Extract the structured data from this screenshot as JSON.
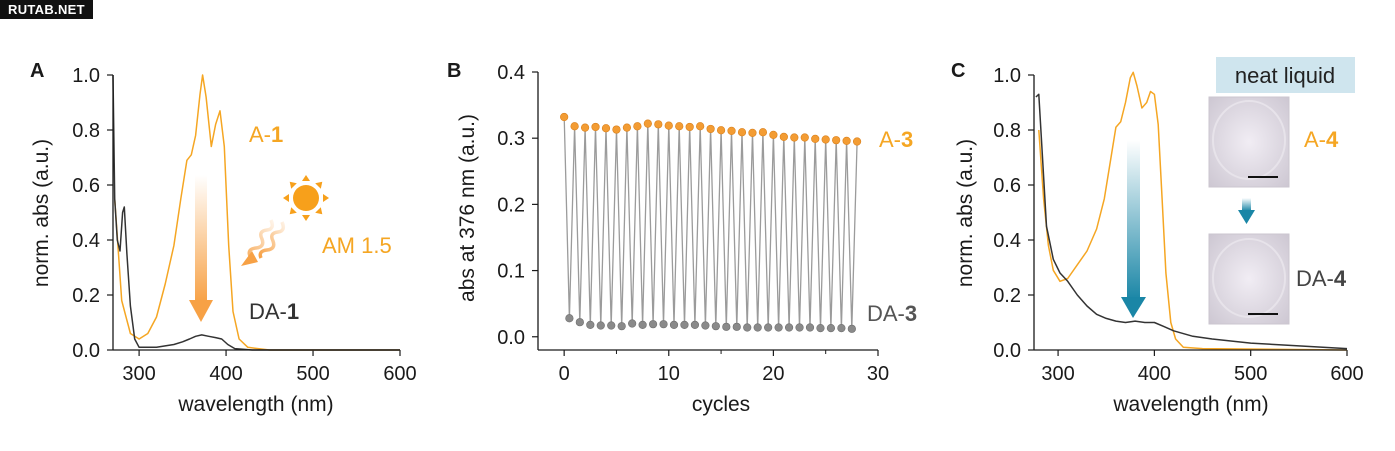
{
  "watermark": "RUTAB.NET",
  "colors": {
    "A_color": "#f5a623",
    "DA_color": "#333333",
    "arrow_orange": "#f7a145",
    "arrow_teal": "#1a86a6",
    "neat_box": "#cfe5ee",
    "dot_orange": "#f39c33",
    "dot_gray": "#8a8a8a"
  },
  "icons": [
    "sun-icon",
    "wavy-arrow-icon",
    "down-arrow-icon"
  ],
  "chart_data": [
    {
      "panel": "A",
      "type": "line",
      "xlabel": "wavelength (nm)",
      "ylabel": "norm. abs (a.u.)",
      "xlim": [
        270,
        600
      ],
      "ylim": [
        0,
        1.0
      ],
      "xticks": [
        300,
        400,
        500,
        600
      ],
      "yticks": [
        0.0,
        0.2,
        0.4,
        0.6,
        0.8,
        1.0
      ],
      "ytick_labels": [
        "0.0",
        "0.2",
        "0.4",
        "0.6",
        "0.8",
        "1.0"
      ],
      "series": [
        {
          "name": "A-1",
          "label_prefix": "A-",
          "label_bold": "1",
          "color_key": "A_color",
          "points": [
            [
              272,
              0.55
            ],
            [
              280,
              0.18
            ],
            [
              290,
              0.06
            ],
            [
              300,
              0.04
            ],
            [
              310,
              0.06
            ],
            [
              320,
              0.12
            ],
            [
              330,
              0.24
            ],
            [
              340,
              0.38
            ],
            [
              348,
              0.55
            ],
            [
              355,
              0.69
            ],
            [
              360,
              0.71
            ],
            [
              365,
              0.78
            ],
            [
              370,
              0.93
            ],
            [
              373,
              1.0
            ],
            [
              377,
              0.92
            ],
            [
              383,
              0.74
            ],
            [
              388,
              0.82
            ],
            [
              393,
              0.87
            ],
            [
              398,
              0.74
            ],
            [
              403,
              0.38
            ],
            [
              408,
              0.14
            ],
            [
              415,
              0.04
            ],
            [
              425,
              0.01
            ],
            [
              450,
              0.0
            ],
            [
              600,
              0.0
            ]
          ]
        },
        {
          "name": "DA-1",
          "label_prefix": "DA-",
          "label_bold": "1",
          "color_key": "DA_color",
          "points": [
            [
              270,
              1.0
            ],
            [
              272,
              0.55
            ],
            [
              275,
              0.4
            ],
            [
              278,
              0.36
            ],
            [
              281,
              0.5
            ],
            [
              283,
              0.52
            ],
            [
              286,
              0.35
            ],
            [
              290,
              0.16
            ],
            [
              295,
              0.04
            ],
            [
              300,
              0.01
            ],
            [
              320,
              0.01
            ],
            [
              340,
              0.02
            ],
            [
              350,
              0.03
            ],
            [
              358,
              0.04
            ],
            [
              365,
              0.05
            ],
            [
              372,
              0.055
            ],
            [
              380,
              0.05
            ],
            [
              388,
              0.045
            ],
            [
              395,
              0.04
            ],
            [
              402,
              0.02
            ],
            [
              410,
              0.005
            ],
            [
              430,
              0.0
            ],
            [
              600,
              0.0
            ]
          ]
        }
      ],
      "annotations": {
        "light_source": "AM 1.5"
      }
    },
    {
      "panel": "B",
      "type": "scatter",
      "xlabel": "cycles",
      "ylabel": "abs at 376 nm (a.u.)",
      "xlim": [
        -2.5,
        30
      ],
      "ylim": [
        -0.02,
        0.4
      ],
      "xticks": [
        0,
        10,
        20,
        30
      ],
      "yticks": [
        0.0,
        0.1,
        0.2,
        0.3,
        0.4
      ],
      "ytick_labels": [
        "0.0",
        "0.1",
        "0.2",
        "0.3",
        "0.4"
      ],
      "series": [
        {
          "name": "A-3",
          "label_prefix": "A-",
          "label_bold": "3",
          "color_key": "dot_orange",
          "x": [
            0,
            1,
            2,
            3,
            4,
            5,
            6,
            7,
            8,
            9,
            10,
            11,
            12,
            13,
            14,
            15,
            16,
            17,
            18,
            19,
            20,
            21,
            22,
            23,
            24,
            25,
            26,
            27,
            28
          ],
          "y": [
            0.332,
            0.318,
            0.316,
            0.317,
            0.315,
            0.313,
            0.316,
            0.318,
            0.322,
            0.321,
            0.319,
            0.318,
            0.317,
            0.318,
            0.314,
            0.312,
            0.311,
            0.309,
            0.308,
            0.309,
            0.305,
            0.302,
            0.301,
            0.301,
            0.299,
            0.298,
            0.297,
            0.296,
            0.295
          ]
        },
        {
          "name": "DA-3",
          "label_prefix": "DA-",
          "label_bold": "3",
          "color_key": "dot_gray",
          "x": [
            0.5,
            1.5,
            2.5,
            3.5,
            4.5,
            5.5,
            6.5,
            7.5,
            8.5,
            9.5,
            10.5,
            11.5,
            12.5,
            13.5,
            14.5,
            15.5,
            16.5,
            17.5,
            18.5,
            19.5,
            20.5,
            21.5,
            22.5,
            23.5,
            24.5,
            25.5,
            26.5,
            27.5
          ],
          "y": [
            0.028,
            0.022,
            0.018,
            0.017,
            0.017,
            0.016,
            0.02,
            0.018,
            0.019,
            0.019,
            0.018,
            0.018,
            0.018,
            0.017,
            0.016,
            0.015,
            0.015,
            0.014,
            0.014,
            0.014,
            0.014,
            0.014,
            0.014,
            0.014,
            0.013,
            0.013,
            0.013,
            0.012
          ]
        }
      ]
    },
    {
      "panel": "C",
      "type": "line",
      "xlabel": "wavelength (nm)",
      "ylabel": "norm. abs (a.u.)",
      "xlim": [
        275,
        600
      ],
      "ylim": [
        0,
        1.0
      ],
      "xticks": [
        300,
        400,
        500,
        600
      ],
      "yticks": [
        0.0,
        0.2,
        0.4,
        0.6,
        0.8,
        1.0
      ],
      "ytick_labels": [
        "0.0",
        "0.2",
        "0.4",
        "0.6",
        "0.8",
        "1.0"
      ],
      "series": [
        {
          "name": "A-4",
          "label_prefix": "A-",
          "label_bold": "4",
          "color_key": "A_color",
          "points": [
            [
              280,
              0.8
            ],
            [
              285,
              0.55
            ],
            [
              290,
              0.38
            ],
            [
              295,
              0.29
            ],
            [
              302,
              0.25
            ],
            [
              310,
              0.26
            ],
            [
              320,
              0.31
            ],
            [
              330,
              0.36
            ],
            [
              340,
              0.44
            ],
            [
              348,
              0.55
            ],
            [
              355,
              0.7
            ],
            [
              360,
              0.81
            ],
            [
              365,
              0.83
            ],
            [
              370,
              0.9
            ],
            [
              375,
              0.99
            ],
            [
              378,
              1.01
            ],
            [
              382,
              0.96
            ],
            [
              387,
              0.88
            ],
            [
              392,
              0.9
            ],
            [
              396,
              0.94
            ],
            [
              400,
              0.93
            ],
            [
              404,
              0.82
            ],
            [
              408,
              0.55
            ],
            [
              412,
              0.28
            ],
            [
              417,
              0.1
            ],
            [
              422,
              0.04
            ],
            [
              430,
              0.01
            ],
            [
              450,
              0.005
            ],
            [
              600,
              0.0
            ]
          ]
        },
        {
          "name": "DA-4",
          "label_prefix": "DA-",
          "label_bold": "4",
          "color_key": "DA_color",
          "points": [
            [
              277,
              0.92
            ],
            [
              280,
              0.93
            ],
            [
              283,
              0.75
            ],
            [
              288,
              0.45
            ],
            [
              295,
              0.33
            ],
            [
              302,
              0.28
            ],
            [
              310,
              0.25
            ],
            [
              320,
              0.2
            ],
            [
              330,
              0.16
            ],
            [
              340,
              0.13
            ],
            [
              350,
              0.115
            ],
            [
              360,
              0.105
            ],
            [
              370,
              0.1
            ],
            [
              380,
              0.105
            ],
            [
              390,
              0.1
            ],
            [
              400,
              0.1
            ],
            [
              410,
              0.085
            ],
            [
              420,
              0.07
            ],
            [
              440,
              0.05
            ],
            [
              460,
              0.04
            ],
            [
              500,
              0.025
            ],
            [
              550,
              0.015
            ],
            [
              600,
              0.005
            ]
          ]
        }
      ],
      "annotations": {
        "neat_label": "neat liquid"
      }
    }
  ]
}
